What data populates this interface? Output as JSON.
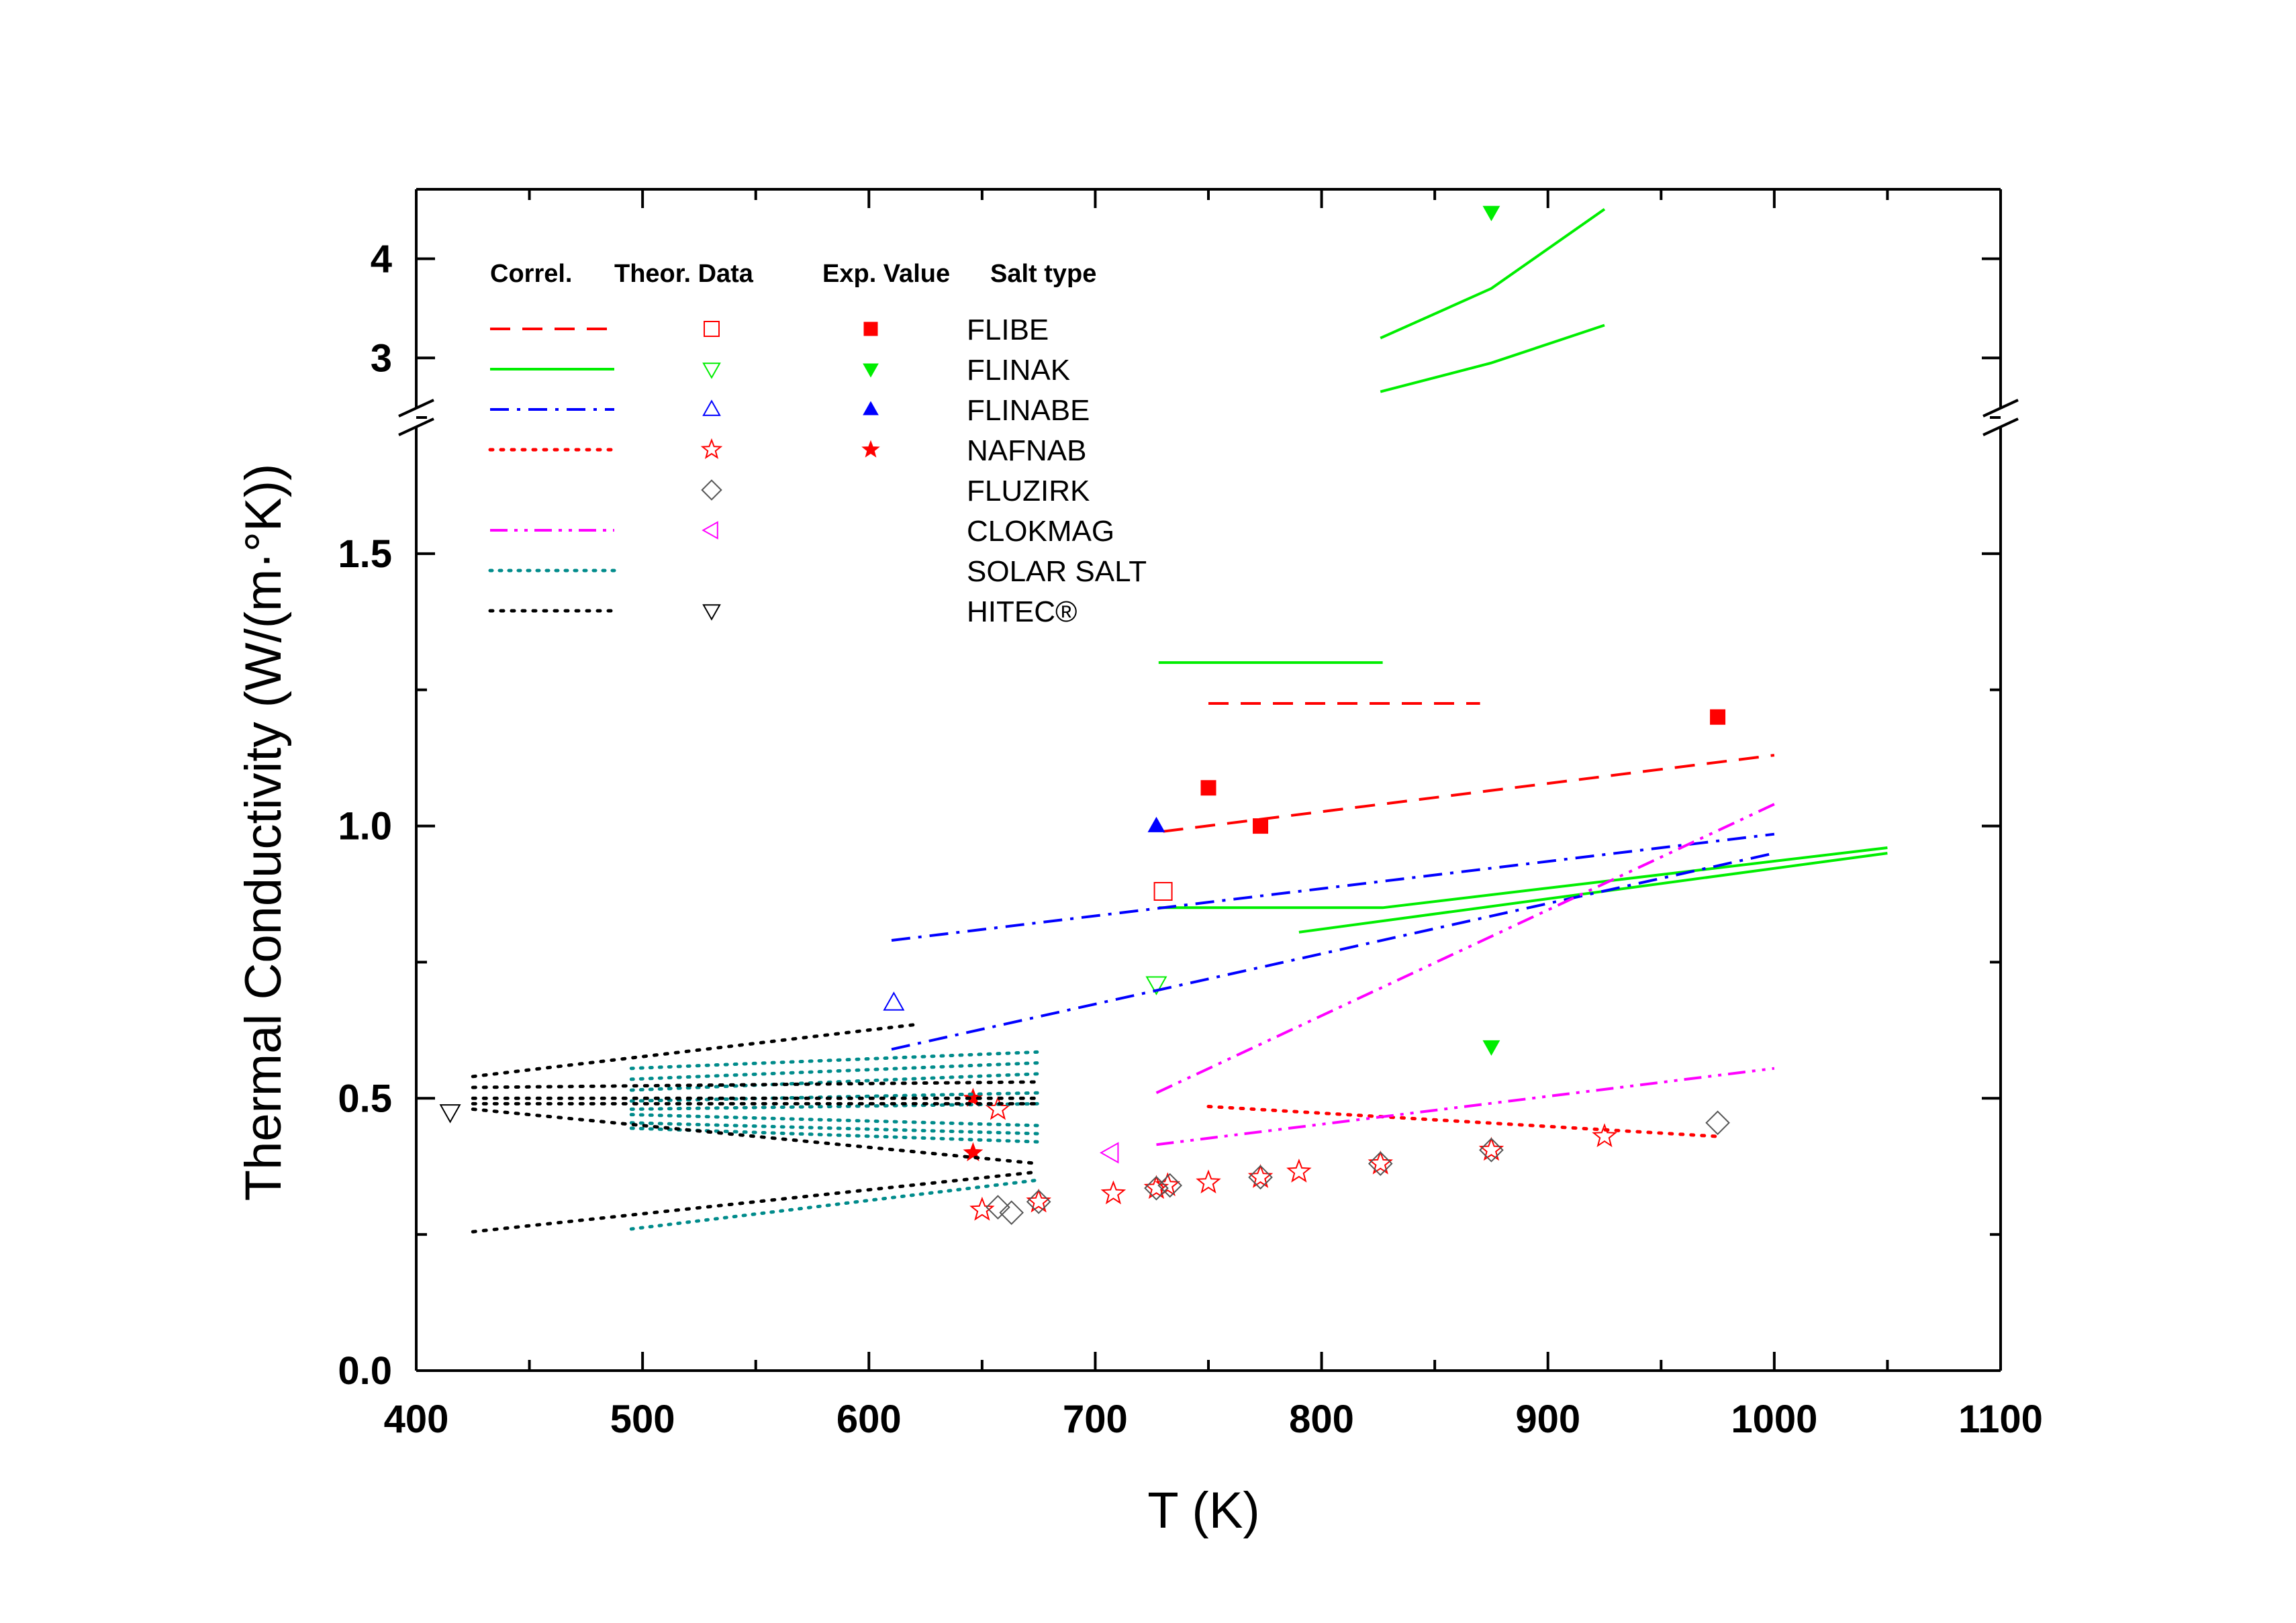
{
  "chart_data": {
    "type": "scatter",
    "xlabel": "T (K)",
    "ylabel": "Thermal Conductivity (W/(m·°K))",
    "xlim": [
      400,
      1100
    ],
    "x_ticks": [
      400,
      500,
      600,
      700,
      800,
      900,
      1000,
      1100
    ],
    "ylim_lower": [
      0,
      1.75
    ],
    "ylim_upper": [
      2.4,
      4.7
    ],
    "y_ticks_lower": [
      0.0,
      0.5,
      1.0,
      1.5
    ],
    "y_ticks_upper": [
      3,
      4
    ],
    "y_tick_labels": [
      "0.0",
      "0.5",
      "1.0",
      "1.5",
      "3",
      "4"
    ],
    "y_axis_break": "between 1.75 and 2.4",
    "grid": false,
    "legend": {
      "placement": "top-left",
      "headers": [
        "Correl.",
        "Theor. Data",
        "Exp. Value",
        "Salt type"
      ],
      "salts": [
        "FLIBE",
        "FLINAK",
        "FLINABE",
        "NAFNAB",
        "FLUZIRK",
        "CLOKMAG",
        "SOLAR SALT",
        "HITEC®"
      ]
    },
    "series": [
      {
        "name": "FLIBE",
        "color": "#ff0000",
        "correlation_style": "dashed",
        "correlations": [
          {
            "x": [
              730,
              1000
            ],
            "y": [
              0.99,
              1.13
            ]
          },
          {
            "x": [
              750,
              870
            ],
            "y": [
              1.225,
              1.225
            ]
          }
        ],
        "theoretical": {
          "marker": "open-square",
          "x": [
            730
          ],
          "y": [
            0.88
          ]
        },
        "experimental": {
          "marker": "filled-square",
          "x": [
            750,
            773,
            975
          ],
          "y": [
            1.07,
            1.0,
            1.2
          ]
        }
      },
      {
        "name": "FLINAK",
        "color": "#00ee00",
        "correlation_style": "solid",
        "correlations": [
          {
            "x": [
              826,
              875,
              925
            ],
            "y": [
              3.2,
              3.7,
              4.5
            ]
          },
          {
            "x": [
              826,
              875,
              925
            ],
            "y": [
              2.66,
              2.95,
              3.33
            ]
          },
          {
            "x": [
              728,
              827
            ],
            "y": [
              1.3,
              1.3
            ]
          },
          {
            "x": [
              728,
              827,
              1050
            ],
            "y": [
              0.85,
              0.85,
              0.96
            ]
          },
          {
            "x": [
              790,
              1050
            ],
            "y": [
              0.805,
              0.95
            ]
          }
        ],
        "theoretical": {
          "marker": "open-triangle-down",
          "x": [
            727
          ],
          "y": [
            0.71
          ]
        },
        "experimental": {
          "marker": "filled-triangle-down",
          "x": [
            875,
            875
          ],
          "y": [
            4.47,
            0.595
          ]
        }
      },
      {
        "name": "FLINABE",
        "color": "#0000ff",
        "correlation_style": "dash-dot",
        "correlations": [
          {
            "x": [
              610,
              1000
            ],
            "y": [
              0.79,
              0.985
            ]
          },
          {
            "x": [
              610,
              1000
            ],
            "y": [
              0.59,
              0.95
            ]
          }
        ],
        "theoretical": {
          "marker": "open-triangle-up",
          "x": [
            611
          ],
          "y": [
            0.675
          ]
        },
        "experimental": {
          "marker": "filled-triangle-up",
          "x": [
            727
          ],
          "y": [
            1.0
          ]
        }
      },
      {
        "name": "NAFNAB",
        "color": "#ff0000",
        "correlation_style": "dotted",
        "correlations": [
          {
            "x": [
              750,
              975
            ],
            "y": [
              0.485,
              0.43
            ]
          }
        ],
        "theoretical": {
          "marker": "open-star",
          "x": [
            650,
            657,
            675,
            708,
            727,
            732,
            750,
            773,
            790,
            826,
            875,
            925
          ],
          "y": [
            0.295,
            0.48,
            0.31,
            0.325,
            0.335,
            0.34,
            0.345,
            0.355,
            0.365,
            0.38,
            0.405,
            0.43
          ]
        },
        "experimental": {
          "marker": "filled-star",
          "x": [
            646,
            646
          ],
          "y": [
            0.5,
            0.4
          ]
        }
      },
      {
        "name": "FLUZIRK",
        "color": "#555555",
        "correlation_style": "none",
        "correlations": [],
        "theoretical": {
          "marker": "open-diamond",
          "x": [
            657,
            663,
            675,
            727,
            733,
            773,
            826,
            875,
            975
          ],
          "y": [
            0.3,
            0.29,
            0.31,
            0.335,
            0.34,
            0.355,
            0.38,
            0.405,
            0.455
          ]
        },
        "experimental": {
          "marker": "none",
          "x": [],
          "y": []
        }
      },
      {
        "name": "CLOKMAG",
        "color": "#ff00ff",
        "correlation_style": "dash-dot-dot",
        "correlations": [
          {
            "x": [
              727,
              1000
            ],
            "y": [
              0.51,
              1.04
            ]
          },
          {
            "x": [
              727,
              1000
            ],
            "y": [
              0.415,
              0.555
            ]
          }
        ],
        "theoretical": {
          "marker": "open-triangle-left",
          "x": [
            707
          ],
          "y": [
            0.4
          ]
        },
        "experimental": {
          "marker": "none",
          "x": [],
          "y": []
        }
      },
      {
        "name": "SOLAR SALT",
        "color": "#008b8b",
        "correlation_style": "short-dot",
        "correlations": [
          {
            "x": [
              495,
              675
            ],
            "y": [
              0.555,
              0.585
            ]
          },
          {
            "x": [
              495,
              675
            ],
            "y": [
              0.535,
              0.565
            ]
          },
          {
            "x": [
              495,
              675
            ],
            "y": [
              0.515,
              0.545
            ]
          },
          {
            "x": [
              495,
              675
            ],
            "y": [
              0.495,
              0.51
            ]
          },
          {
            "x": [
              495,
              675
            ],
            "y": [
              0.48,
              0.49
            ]
          },
          {
            "x": [
              495,
              675
            ],
            "y": [
              0.47,
              0.45
            ]
          },
          {
            "x": [
              495,
              675
            ],
            "y": [
              0.455,
              0.435
            ]
          },
          {
            "x": [
              495,
              675
            ],
            "y": [
              0.445,
              0.42
            ]
          },
          {
            "x": [
              495,
              675
            ],
            "y": [
              0.26,
              0.35
            ]
          }
        ],
        "theoretical": {
          "marker": "none",
          "x": [],
          "y": []
        },
        "experimental": {
          "marker": "none",
          "x": [],
          "y": []
        }
      },
      {
        "name": "HITEC®",
        "color": "#000000",
        "correlation_style": "dotted",
        "correlations": [
          {
            "x": [
              425,
              620
            ],
            "y": [
              0.54,
              0.635
            ]
          },
          {
            "x": [
              425,
              675
            ],
            "y": [
              0.52,
              0.53
            ]
          },
          {
            "x": [
              425,
              675
            ],
            "y": [
              0.5,
              0.5
            ]
          },
          {
            "x": [
              425,
              675
            ],
            "y": [
              0.49,
              0.49
            ]
          },
          {
            "x": [
              425,
              675
            ],
            "y": [
              0.48,
              0.38
            ]
          },
          {
            "x": [
              425,
              675
            ],
            "y": [
              0.255,
              0.365
            ]
          }
        ],
        "theoretical": {
          "marker": "open-triangle-down",
          "x": [
            415
          ],
          "y": [
            0.475
          ]
        },
        "experimental": {
          "marker": "none",
          "x": [],
          "y": []
        }
      }
    ]
  }
}
